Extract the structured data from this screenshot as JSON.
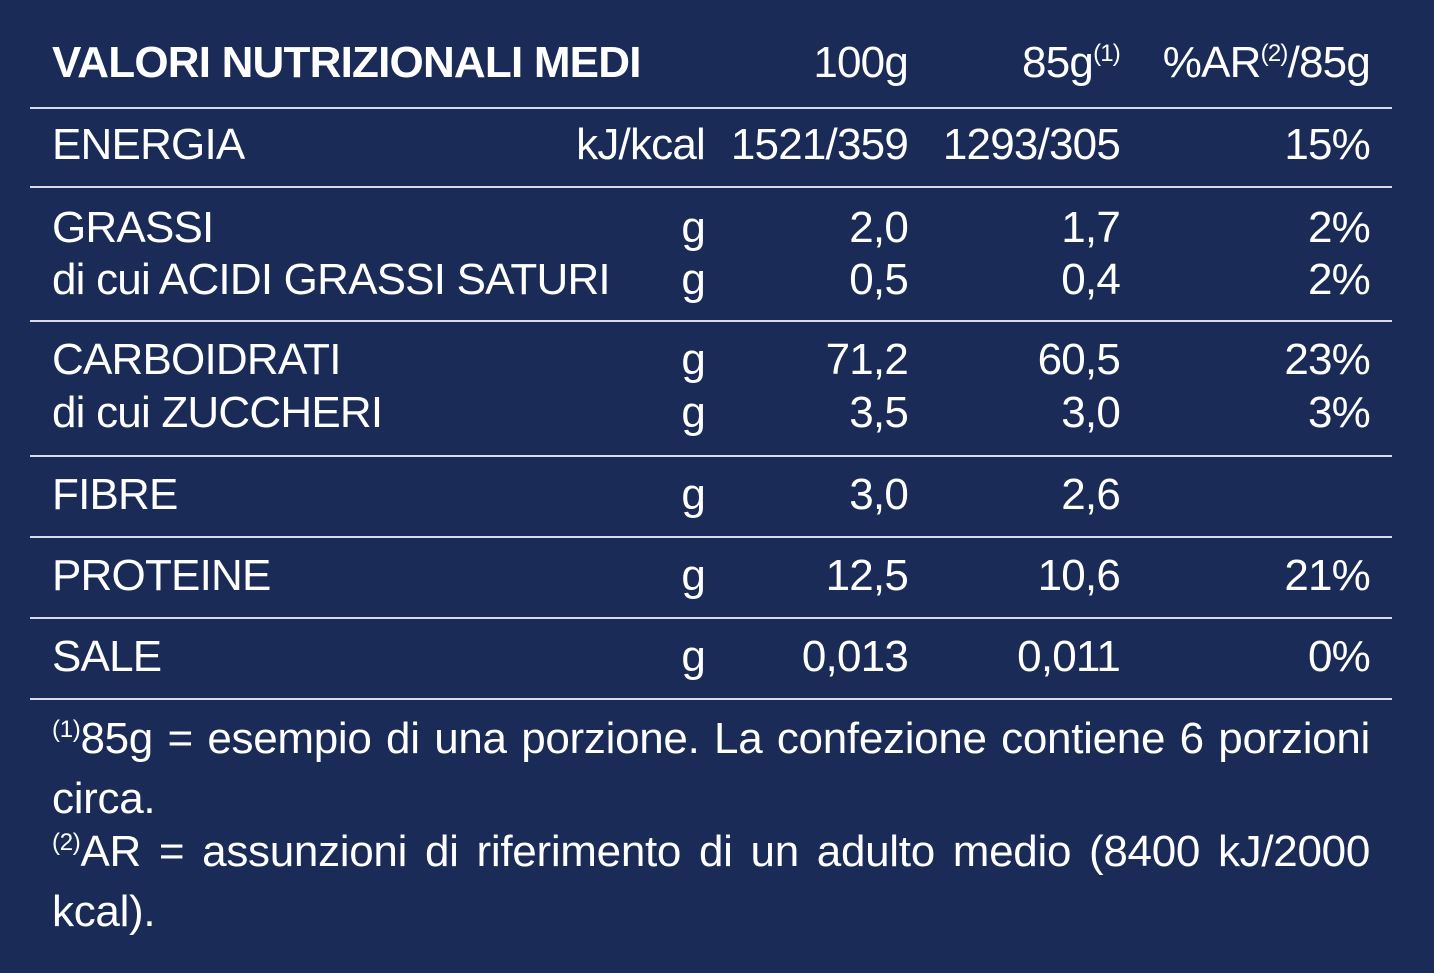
{
  "table": {
    "header": {
      "title": "VALORI NUTRIZIONALI MEDI",
      "per_100g": "100g",
      "per_portion": {
        "text": "85g",
        "note": "(1)"
      },
      "ar": {
        "text": "%AR",
        "note": "(2)",
        "suffix": "/85g"
      }
    },
    "groups": [
      [
        [
          "ENERGIA",
          "kJ/kcal",
          "1521/359",
          "1293/305",
          "15%"
        ]
      ],
      [
        [
          "GRASSI",
          "g",
          "2,0",
          "1,7",
          "2%"
        ],
        [
          "di cui ACIDI GRASSI SATURI",
          "g",
          "0,5",
          "0,4",
          "2%"
        ]
      ],
      [
        [
          "CARBOIDRATI",
          "g",
          "71,2",
          "60,5",
          "23%"
        ],
        [
          "di cui ZUCCHERI",
          "g",
          "3,5",
          "3,0",
          "3%"
        ]
      ],
      [
        [
          "FIBRE",
          "g",
          "3,0",
          "2,6",
          null
        ]
      ],
      [
        [
          "PROTEINE",
          "g",
          "12,5",
          "10,6",
          "21%"
        ]
      ],
      [
        [
          "SALE",
          "g",
          "0,013",
          "0,011",
          "0%"
        ]
      ]
    ],
    "footnotes": [
      {
        "mark": "(1)",
        "text": "85g = esempio di una porzione. La confezione contiene 6 porzioni circa."
      },
      {
        "mark": "(2)",
        "text": "AR = assunzioni di riferimento di un adulto medio (8400 kJ/2000 kcal)."
      }
    ]
  }
}
